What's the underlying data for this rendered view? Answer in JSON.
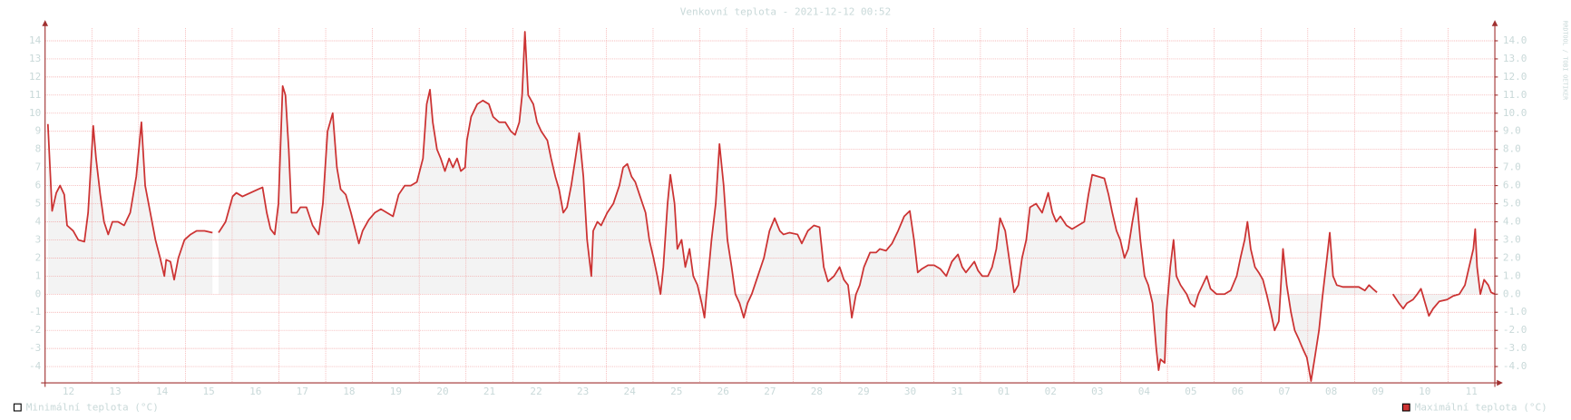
{
  "chart_data": {
    "type": "line",
    "title": "Venkovní teplota - 2021-12-12 00:52",
    "watermark": "RRDTOOL / TOBI OETIKER",
    "categories": [
      "12",
      "13",
      "14",
      "15",
      "16",
      "17",
      "18",
      "19",
      "20",
      "21",
      "22",
      "23",
      "24",
      "25",
      "26",
      "27",
      "28",
      "29",
      "30",
      "31",
      "01",
      "02",
      "03",
      "04",
      "05",
      "06",
      "07",
      "08",
      "09",
      "10",
      "11"
    ],
    "xlim": [
      0,
      31
    ],
    "xticks": [
      0,
      1,
      2,
      3,
      4,
      5,
      6,
      7,
      8,
      9,
      10,
      11,
      12,
      13,
      14,
      15,
      16,
      17,
      18,
      19,
      20,
      21,
      22,
      23,
      24,
      25,
      26,
      27,
      28,
      29,
      30,
      31
    ],
    "ylim": [
      -4.9,
      14.7
    ],
    "yticks": [
      -4,
      -3,
      -2,
      -1,
      0,
      1,
      2,
      3,
      4,
      5,
      6,
      7,
      8,
      9,
      10,
      11,
      12,
      13,
      14
    ],
    "y2lim": [
      -4.9,
      14.7
    ],
    "y2ticks": [
      {
        "value": -4,
        "label": "-4.0"
      },
      {
        "value": -3,
        "label": "-3.0"
      },
      {
        "value": -2,
        "label": "-2.0"
      },
      {
        "value": -1,
        "label": "-1.0"
      },
      {
        "value": 0,
        "label": "0.0"
      },
      {
        "value": 1,
        "label": "1.0"
      },
      {
        "value": 2,
        "label": "2.0"
      },
      {
        "value": 3,
        "label": "3.0"
      },
      {
        "value": 4,
        "label": "4.0"
      },
      {
        "value": 5,
        "label": "5.0"
      },
      {
        "value": 6,
        "label": "6.0"
      },
      {
        "value": 7,
        "label": "7.0"
      },
      {
        "value": 8,
        "label": "8.0"
      },
      {
        "value": 9,
        "label": "9.0"
      },
      {
        "value": 10,
        "label": "10.0"
      },
      {
        "value": 11,
        "label": "11.0"
      },
      {
        "value": 12,
        "label": "12.0"
      },
      {
        "value": 13,
        "label": "13.0"
      },
      {
        "value": 14,
        "label": "14.0"
      }
    ],
    "grid": true,
    "color": "#cc3333",
    "legend": [
      {
        "name": "Minimální teplota (°C)",
        "color": "#ffffff"
      },
      {
        "name": "Maximální teplota (°C)",
        "color": "#cc3333"
      }
    ],
    "x": [
      0.06,
      0.15,
      0.24,
      0.32,
      0.41,
      0.47,
      0.6,
      0.71,
      0.84,
      0.92,
      1.03,
      1.09,
      1.18,
      1.26,
      1.35,
      1.44,
      1.56,
      1.69,
      1.82,
      1.95,
      2.06,
      2.14,
      2.25,
      2.36,
      2.46,
      2.55,
      2.59,
      2.68,
      2.76,
      2.85,
      2.98,
      3.11,
      3.24,
      3.41,
      3.58,
      3.64,
      3.71,
      3.86,
      4.01,
      4.09,
      4.22,
      4.39,
      4.56,
      4.65,
      4.74,
      4.82,
      4.91,
      4.99,
      5.08,
      5.14,
      5.21,
      5.27,
      5.38,
      5.46,
      5.59,
      5.72,
      5.85,
      5.94,
      6.04,
      6.15,
      6.24,
      6.32,
      6.43,
      6.54,
      6.62,
      6.71,
      6.79,
      6.92,
      7.05,
      7.18,
      7.31,
      7.44,
      7.56,
      7.69,
      7.82,
      7.95,
      8.08,
      8.16,
      8.23,
      8.29,
      8.38,
      8.46,
      8.55,
      8.64,
      8.72,
      8.81,
      8.89,
      8.98,
      9.02,
      9.11,
      9.24,
      9.36,
      9.49,
      9.58,
      9.71,
      9.84,
      9.96,
      10.05,
      10.14,
      10.2,
      10.26,
      10.33,
      10.44,
      10.52,
      10.61,
      10.74,
      10.82,
      10.91,
      10.99,
      11.08,
      11.16,
      11.25,
      11.34,
      11.42,
      11.51,
      11.59,
      11.68,
      11.72,
      11.81,
      11.89,
      12.02,
      12.15,
      12.28,
      12.36,
      12.45,
      12.54,
      12.62,
      12.71,
      12.84,
      12.92,
      13.01,
      13.09,
      13.16,
      13.22,
      13.31,
      13.37,
      13.46,
      13.52,
      13.61,
      13.69,
      13.78,
      13.86,
      13.95,
      14.04,
      14.1,
      14.16,
      14.25,
      14.34,
      14.42,
      14.51,
      14.59,
      14.68,
      14.76,
      14.85,
      14.94,
      15.02,
      15.11,
      15.24,
      15.37,
      15.49,
      15.6,
      15.71,
      15.79,
      15.92,
      16.09,
      16.18,
      16.31,
      16.44,
      16.56,
      16.65,
      16.74,
      16.87,
      16.99,
      17.08,
      17.17,
      17.25,
      17.34,
      17.42,
      17.51,
      17.64,
      17.77,
      17.85,
      17.98,
      18.11,
      18.24,
      18.37,
      18.49,
      18.58,
      18.66,
      18.75,
      18.88,
      19.01,
      19.14,
      19.27,
      19.39,
      19.52,
      19.61,
      19.69,
      19.78,
      19.87,
      19.95,
      20.04,
      20.16,
      20.25,
      20.34,
      20.42,
      20.53,
      20.64,
      20.72,
      20.81,
      20.89,
      20.98,
      21.06,
      21.19,
      21.32,
      21.45,
      21.54,
      21.62,
      21.71,
      21.84,
      21.96,
      22.09,
      22.22,
      22.31,
      22.39,
      22.52,
      22.65,
      22.74,
      22.82,
      22.91,
      22.99,
      23.08,
      23.16,
      23.25,
      23.34,
      23.42,
      23.51,
      23.59,
      23.68,
      23.76,
      23.81,
      23.85,
      23.94,
      23.98,
      24.06,
      24.13,
      24.19,
      24.28,
      24.41,
      24.49,
      24.58,
      24.66,
      24.75,
      24.84,
      24.92,
      25.05,
      25.22,
      25.35,
      25.48,
      25.56,
      25.65,
      25.71,
      25.78,
      25.87,
      25.95,
      26.04,
      26.12,
      26.21,
      26.29,
      26.38,
      26.47,
      26.55,
      26.64,
      26.72,
      26.81,
      26.89,
      26.98,
      27.07,
      27.15,
      27.24,
      27.32,
      27.41,
      27.47,
      27.54,
      27.62,
      27.75,
      27.92,
      28.09,
      28.22,
      28.31,
      28.39,
      28.48,
      28.65,
      28.82,
      28.95,
      29.04,
      29.12,
      29.25,
      29.34,
      29.42,
      29.51,
      29.59,
      29.68,
      29.81,
      29.98,
      30.11,
      30.24,
      30.36,
      30.45,
      30.54,
      30.58,
      30.62,
      30.69,
      30.77,
      30.86,
      30.92,
      31.0
    ],
    "values": [
      9.4,
      4.6,
      5.6,
      6.0,
      5.5,
      3.8,
      3.5,
      3.0,
      2.9,
      4.5,
      9.3,
      7.5,
      5.5,
      4.0,
      3.3,
      4.0,
      4.0,
      3.8,
      4.5,
      6.5,
      9.5,
      6.0,
      4.5,
      3.0,
      2.0,
      1.0,
      1.9,
      1.8,
      0.8,
      2.0,
      3.0,
      3.3,
      3.5,
      3.5,
      3.4,
      null,
      3.4,
      4.0,
      5.4,
      5.6,
      5.4,
      5.6,
      5.8,
      5.9,
      4.5,
      3.6,
      3.3,
      5.0,
      11.5,
      11.0,
      8.0,
      4.5,
      4.5,
      4.8,
      4.8,
      3.8,
      3.3,
      5.0,
      9.0,
      10.0,
      7.0,
      5.8,
      5.5,
      4.5,
      3.7,
      2.8,
      3.5,
      4.1,
      4.5,
      4.7,
      4.5,
      4.3,
      5.5,
      6.0,
      6.0,
      6.2,
      7.5,
      10.5,
      11.3,
      9.5,
      8.0,
      7.5,
      6.8,
      7.5,
      7.0,
      7.5,
      6.8,
      7.0,
      8.5,
      9.8,
      10.5,
      10.7,
      10.5,
      9.8,
      9.5,
      9.5,
      9.0,
      8.8,
      9.5,
      11.0,
      14.5,
      11.0,
      10.5,
      9.5,
      9.0,
      8.5,
      7.5,
      6.5,
      5.8,
      4.5,
      4.8,
      6.0,
      7.5,
      8.9,
      6.5,
      3.0,
      1.0,
      3.5,
      4.0,
      3.8,
      4.5,
      5.0,
      6.0,
      7.0,
      7.2,
      6.5,
      6.2,
      5.5,
      4.5,
      3.0,
      2.0,
      1.0,
      0.0,
      1.5,
      5.0,
      6.6,
      5.0,
      2.5,
      3.0,
      1.5,
      2.5,
      1.0,
      0.5,
      -0.5,
      -1.3,
      0.5,
      3.0,
      5.0,
      8.3,
      6.0,
      3.0,
      1.5,
      0.0,
      -0.5,
      -1.3,
      -0.5,
      0.0,
      1.0,
      2.0,
      3.5,
      4.2,
      3.5,
      3.3,
      3.4,
      3.3,
      2.8,
      3.5,
      3.8,
      3.7,
      1.5,
      0.7,
      1.0,
      1.5,
      0.8,
      0.5,
      -1.3,
      0.0,
      0.5,
      1.5,
      2.3,
      2.3,
      2.5,
      2.4,
      2.8,
      3.5,
      4.3,
      4.6,
      3.0,
      1.2,
      1.4,
      1.6,
      1.6,
      1.4,
      1.0,
      1.8,
      2.2,
      1.5,
      1.2,
      1.5,
      1.8,
      1.3,
      1.0,
      1.0,
      1.5,
      2.5,
      4.2,
      3.5,
      1.5,
      0.1,
      0.5,
      2.0,
      3.0,
      4.8,
      5.0,
      4.5,
      5.6,
      4.5,
      4.0,
      4.3,
      3.8,
      3.6,
      3.8,
      4.0,
      5.5,
      6.6,
      6.5,
      6.4,
      5.5,
      4.5,
      3.5,
      3.0,
      2.0,
      2.5,
      4.0,
      5.3,
      3.0,
      1.0,
      0.5,
      -0.5,
      -3.0,
      -4.2,
      -3.6,
      -3.8,
      -1.0,
      1.5,
      3.0,
      1.0,
      0.5,
      0.0,
      -0.5,
      -0.7,
      0.0,
      0.5,
      1.0,
      0.3,
      0.0,
      0.0,
      0.2,
      1.0,
      2.0,
      3.0,
      4.0,
      2.5,
      1.5,
      1.2,
      0.8,
      0.0,
      -1.0,
      -2.0,
      -1.5,
      2.5,
      0.5,
      -1.0,
      -2.0,
      -2.5,
      -3.0,
      -3.5,
      -4.8,
      -3.5,
      -2.0,
      0.0,
      2.0,
      3.4,
      1.0,
      0.5,
      0.4,
      0.4,
      0.4,
      0.2,
      0.5,
      0.3,
      0.1,
      null,
      0.0,
      -0.5,
      -0.8,
      -0.5,
      -0.3,
      0.0,
      0.3,
      -0.5,
      -1.2,
      -0.8,
      -0.4,
      -0.3,
      -0.1,
      0.0,
      0.5,
      1.5,
      2.5,
      3.6,
      1.5,
      0.0,
      0.8,
      0.5,
      0.1,
      0.0
    ]
  }
}
